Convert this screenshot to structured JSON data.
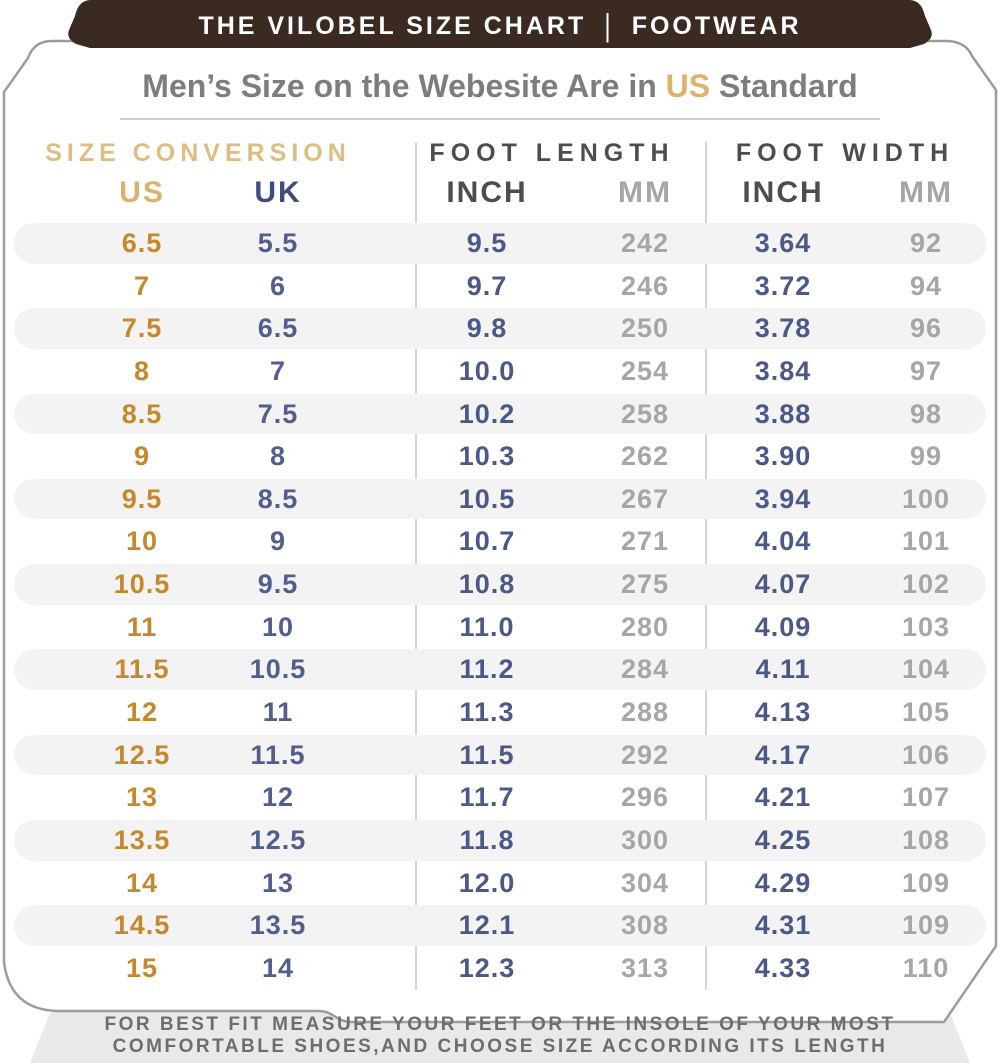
{
  "brand_bar": {
    "left": "THE VILOBEL SIZE CHART",
    "separator": "|",
    "right": "FOOTWEAR"
  },
  "title": {
    "prefix": "Men’s Size on the Webesite Are in ",
    "highlight": "US",
    "suffix": " Standard"
  },
  "section_headers": {
    "conversion": "SIZE CONVERSION",
    "length": "FOOT LENGTH",
    "width": "FOOT WIDTH"
  },
  "column_headers": {
    "us": "US",
    "uk": "UK",
    "inch": "INCH",
    "mm": "MM"
  },
  "footer": {
    "line1": "FOR BEST FIT MEASURE YOUR FEET OR THE INSOLE OF YOUR MOST",
    "line2": "COMFORTABLE SHOES,AND CHOOSE SIZE ACCORDING ITS LENGTH"
  },
  "colors": {
    "header_brown": "#3a2a22",
    "tan_accent": "#ddbe82",
    "gold_data": "#c5882c",
    "navy_data": "#4c5886",
    "dark_gray": "#4d4d4d",
    "light_gray": "#a6a6a6",
    "stripe": "#f3f3f3",
    "bottom_band": "#e9e9e9",
    "card_border": "#9c9c9c"
  },
  "chart_data": {
    "type": "table",
    "title": "Men’s Size on the Webesite Are in US Standard",
    "sections": [
      "SIZE CONVERSION",
      "FOOT LENGTH",
      "FOOT WIDTH"
    ],
    "columns": [
      "US",
      "UK",
      "FOOT LENGTH INCH",
      "FOOT LENGTH MM",
      "FOOT WIDTH INCH",
      "FOOT WIDTH MM"
    ],
    "rows": [
      [
        "6.5",
        "5.5",
        "9.5",
        "242",
        "3.64",
        "92"
      ],
      [
        "7",
        "6",
        "9.7",
        "246",
        "3.72",
        "94"
      ],
      [
        "7.5",
        "6.5",
        "9.8",
        "250",
        "3.78",
        "96"
      ],
      [
        "8",
        "7",
        "10.0",
        "254",
        "3.84",
        "97"
      ],
      [
        "8.5",
        "7.5",
        "10.2",
        "258",
        "3.88",
        "98"
      ],
      [
        "9",
        "8",
        "10.3",
        "262",
        "3.90",
        "99"
      ],
      [
        "9.5",
        "8.5",
        "10.5",
        "267",
        "3.94",
        "100"
      ],
      [
        "10",
        "9",
        "10.7",
        "271",
        "4.04",
        "101"
      ],
      [
        "10.5",
        "9.5",
        "10.8",
        "275",
        "4.07",
        "102"
      ],
      [
        "11",
        "10",
        "11.0",
        "280",
        "4.09",
        "103"
      ],
      [
        "11.5",
        "10.5",
        "11.2",
        "284",
        "4.11",
        "104"
      ],
      [
        "12",
        "11",
        "11.3",
        "288",
        "4.13",
        "105"
      ],
      [
        "12.5",
        "11.5",
        "11.5",
        "292",
        "4.17",
        "106"
      ],
      [
        "13",
        "12",
        "11.7",
        "296",
        "4.21",
        "107"
      ],
      [
        "13.5",
        "12.5",
        "11.8",
        "300",
        "4.25",
        "108"
      ],
      [
        "14",
        "13",
        "12.0",
        "304",
        "4.29",
        "109"
      ],
      [
        "14.5",
        "13.5",
        "12.1",
        "308",
        "4.31",
        "109"
      ],
      [
        "15",
        "14",
        "12.3",
        "313",
        "4.33",
        "110"
      ]
    ]
  }
}
